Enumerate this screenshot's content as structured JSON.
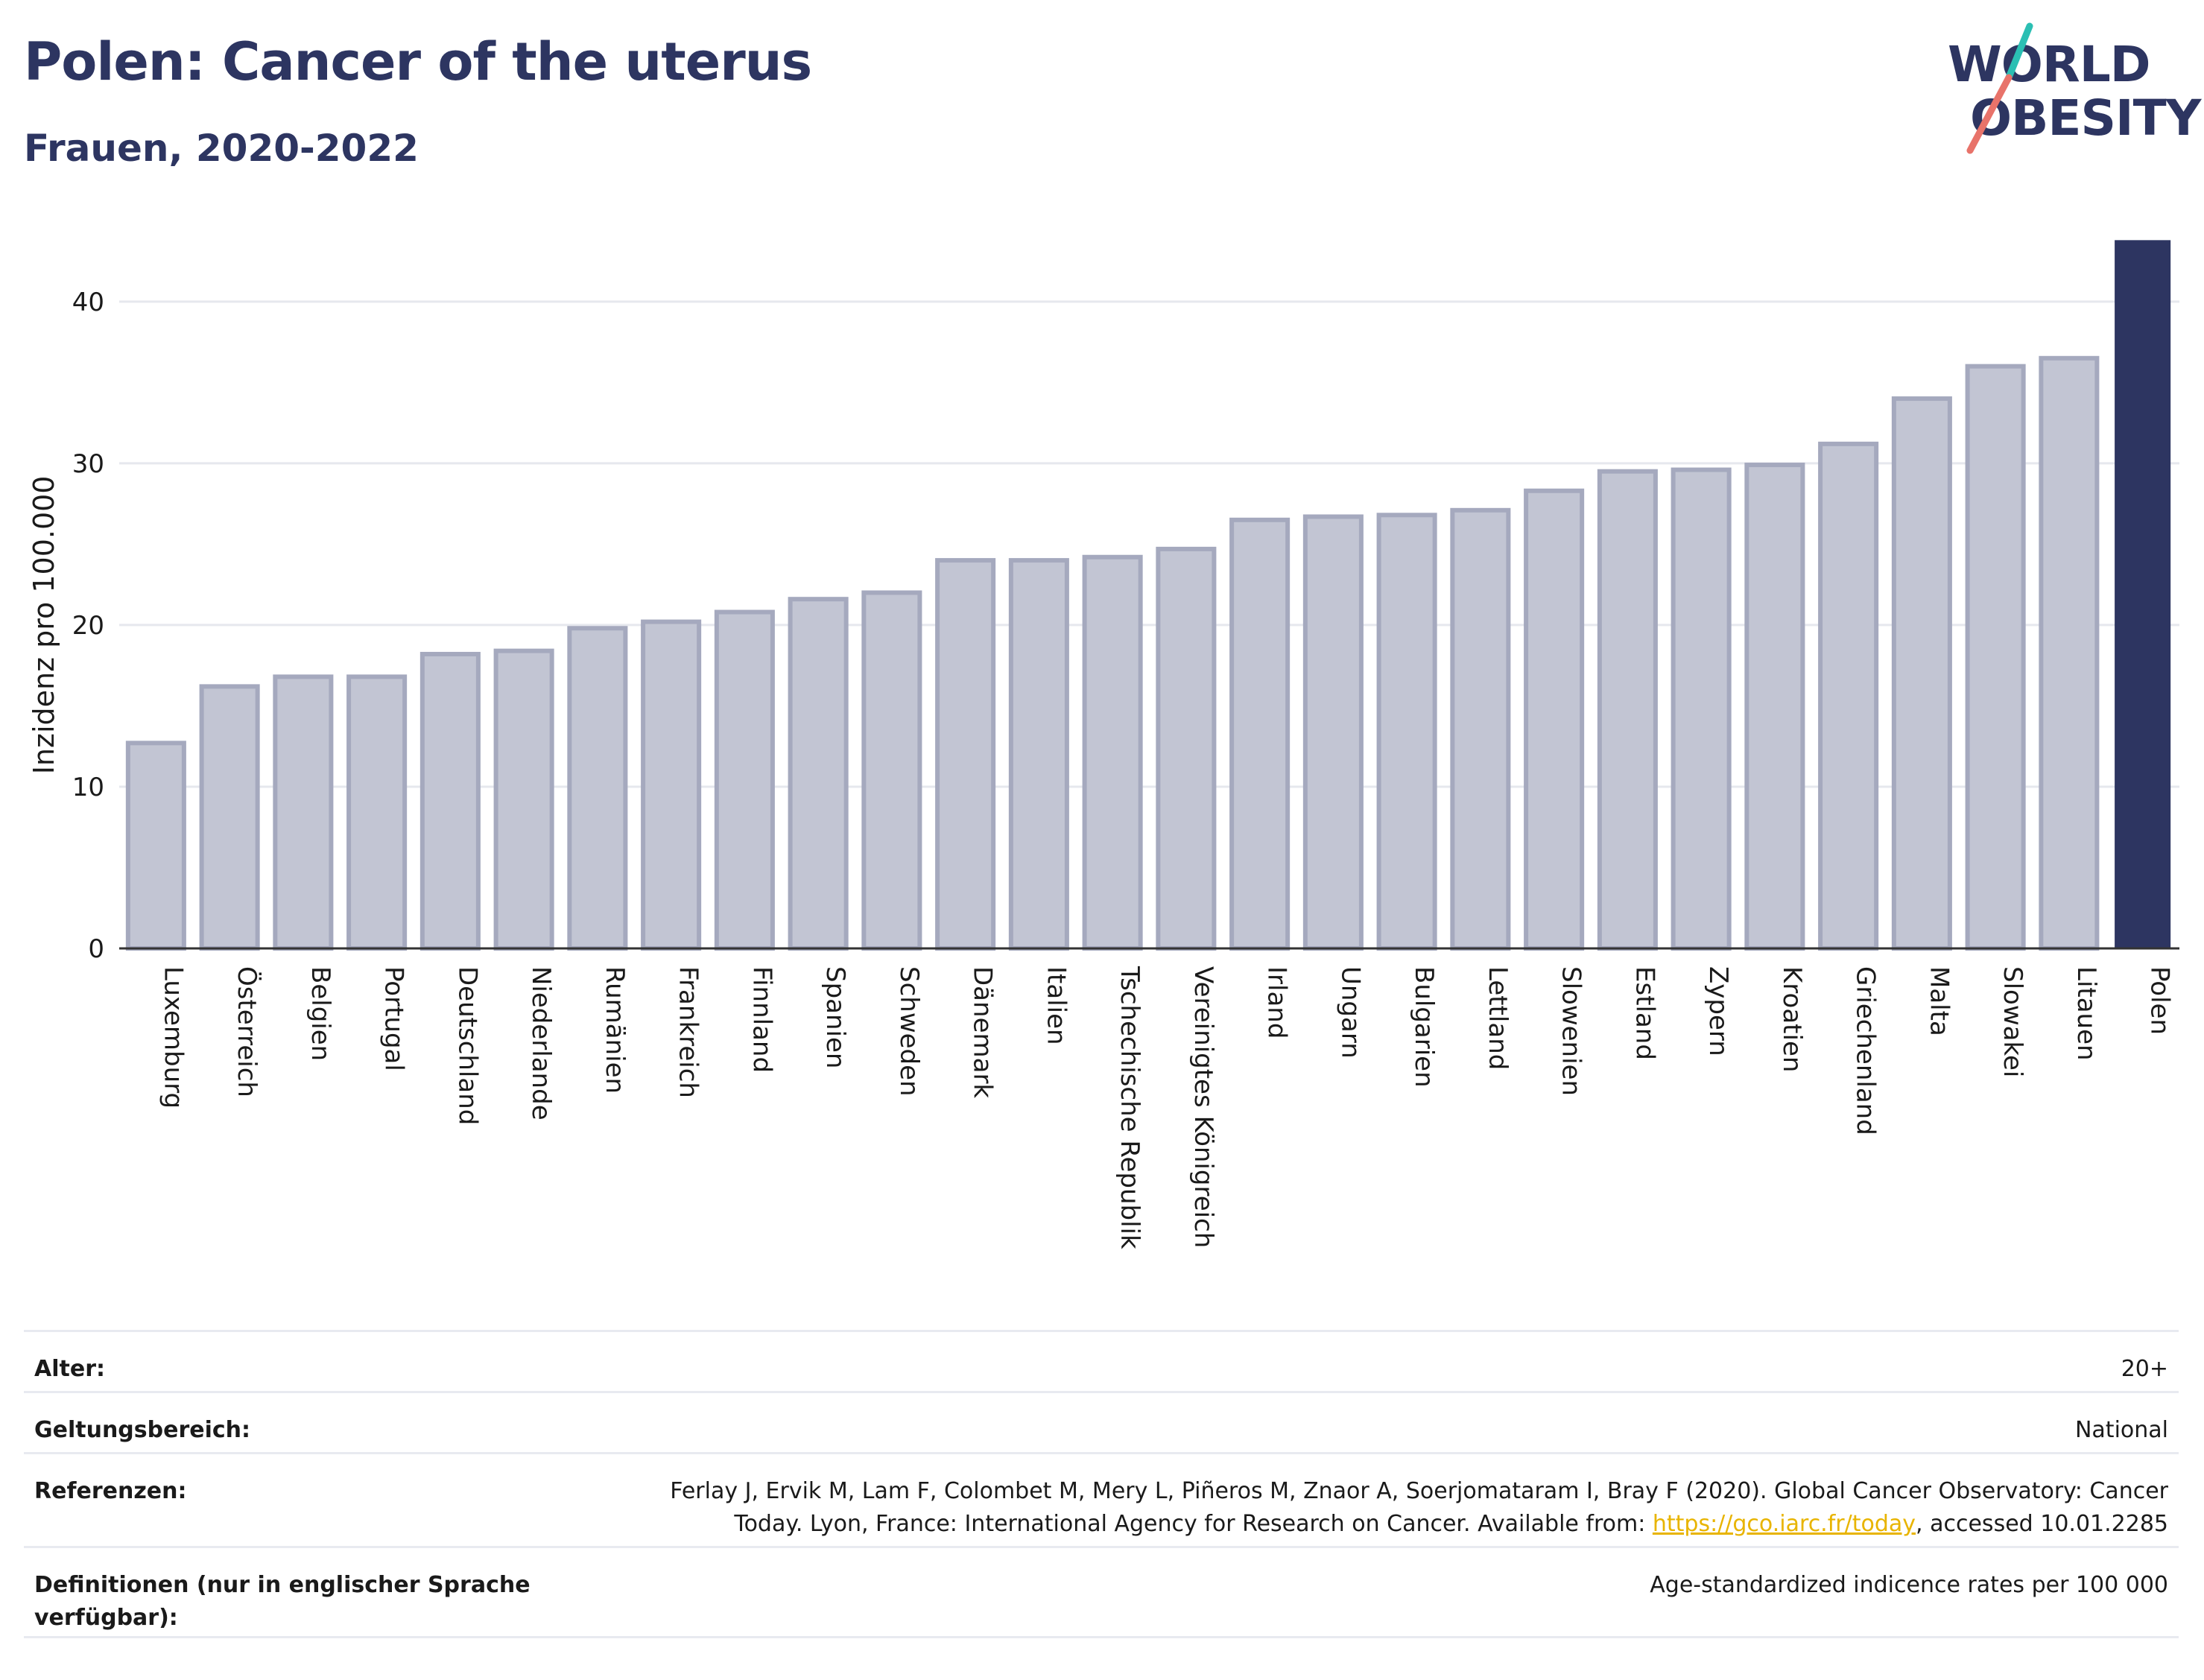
{
  "header": {
    "title": "Polen: Cancer of the uterus",
    "subtitle": "Frauen, 2020-2022"
  },
  "logo": {
    "line1": "WORLD",
    "line2": "OBESITY",
    "text_color": "#2d3561",
    "slash_colors": [
      "#2bbfb3",
      "#e8736a"
    ]
  },
  "chart_data": {
    "type": "bar",
    "title": "Polen: Cancer of the uterus",
    "subtitle": "Frauen, 2020-2022",
    "ylabel": "Inzidenz pro 100.000",
    "xlabel": "",
    "ylim": [
      0,
      44
    ],
    "yticks": [
      0,
      10,
      20,
      30,
      40
    ],
    "grid": true,
    "highlight": "Polen",
    "colors": {
      "default_fill": "#c2c5d3",
      "default_stroke": "#a5a9be",
      "highlight": "#2d3561"
    },
    "categories": [
      "Luxemburg",
      "Österreich",
      "Belgien",
      "Portugal",
      "Deutschland",
      "Niederlande",
      "Rumänien",
      "Frankreich",
      "Finnland",
      "Spanien",
      "Schweden",
      "Dänemark",
      "Italien",
      "Tschechische Republik",
      "Vereinigtes Königreich",
      "Irland",
      "Ungarn",
      "Bulgarien",
      "Lettland",
      "Slowenien",
      "Estland",
      "Zypern",
      "Kroatien",
      "Griechenland",
      "Malta",
      "Slowakei",
      "Litauen",
      "Polen"
    ],
    "values": [
      12.7,
      16.2,
      16.8,
      16.8,
      18.2,
      18.4,
      19.8,
      20.2,
      20.8,
      21.6,
      22.0,
      24.0,
      24.0,
      24.2,
      24.7,
      26.5,
      26.7,
      26.8,
      27.1,
      28.3,
      29.5,
      29.6,
      29.9,
      31.2,
      34.0,
      36.0,
      36.5,
      43.8
    ]
  },
  "meta": {
    "rows": [
      {
        "label": "Alter:",
        "value": "20+"
      },
      {
        "label": "Geltungsbereich:",
        "value": "National"
      },
      {
        "label": "Referenzen:",
        "value_line1": "Ferlay J, Ervik M, Lam F, Colombet M, Mery L, Piñeros M, Znaor A, Soerjomataram I, Bray F (2020). Global Cancer Observatory: Cancer",
        "value_line2_pre": "Today. Lyon, France: International Agency for Research on Cancer. Available from: ",
        "link": "https://gco.iarc.fr/today",
        "value_line2_post": ", accessed 10.01.2285"
      },
      {
        "label": "Definitionen (nur in englischer Sprache verfügbar):",
        "value": "Age-standardized indicence rates per 100 000"
      }
    ]
  }
}
